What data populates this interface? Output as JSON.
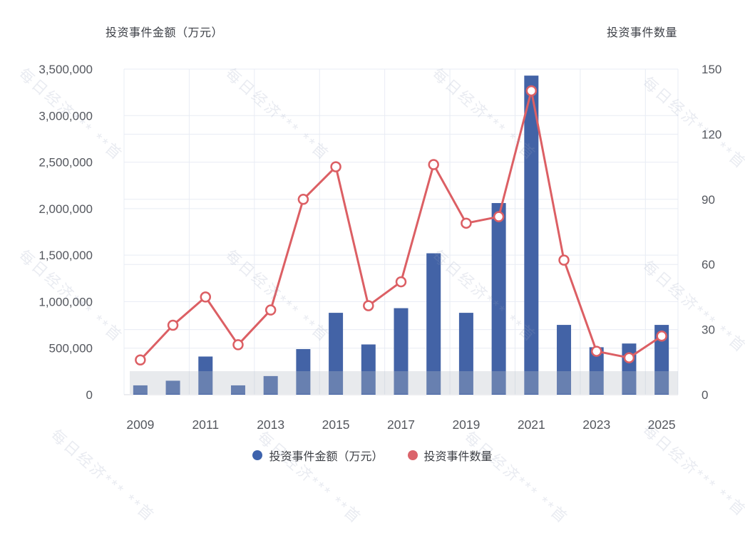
{
  "header": {
    "left_axis_title": "投资事件金额（万元）",
    "right_axis_title": "投资事件数量"
  },
  "legend": {
    "items": [
      {
        "label": "投资事件金额（万元）",
        "color": "#3E63AD"
      },
      {
        "label": "投资事件数量",
        "color": "#DB646B"
      }
    ]
  },
  "watermark": {
    "text": "每日经济*** **首"
  },
  "chart_data": {
    "type": "bar",
    "subtype": "dual-axis bar + line",
    "categories": [
      "2009",
      "2010",
      "2011",
      "2012",
      "2013",
      "2014",
      "2015",
      "2016",
      "2017",
      "2018",
      "2019",
      "2020",
      "2021",
      "2022",
      "2023",
      "2024",
      "2025"
    ],
    "series": [
      {
        "name": "投资事件金额（万元）",
        "type": "bar",
        "axis": "left",
        "color": "#4363A6",
        "values": [
          100000,
          150000,
          410000,
          100000,
          200000,
          490000,
          880000,
          540000,
          930000,
          1520000,
          880000,
          2060000,
          3430000,
          750000,
          510000,
          550000,
          750000
        ]
      },
      {
        "name": "投资事件数量",
        "type": "line",
        "axis": "right",
        "color": "#DC5F64",
        "marker": "circle-white-fill",
        "values": [
          16,
          32,
          45,
          23,
          39,
          90,
          105,
          41,
          52,
          106,
          79,
          82,
          140,
          62,
          20,
          17,
          27
        ]
      }
    ],
    "left_axis": {
      "title": "投资事件金额（万元）",
      "min": 0,
      "max": 3500000,
      "tick_step": 500000,
      "tick_labels": [
        "0",
        "500,000",
        "1,000,000",
        "1,500,000",
        "2,000,000",
        "2,500,000",
        "3,000,000",
        "3,500,000"
      ]
    },
    "right_axis": {
      "title": "投资事件数量",
      "min": 0,
      "max": 150,
      "tick_step": 30,
      "tick_labels": [
        "0",
        "30",
        "60",
        "90",
        "120",
        "150"
      ]
    },
    "x_tick_labels": [
      "2009",
      "2011",
      "2013",
      "2015",
      "2017",
      "2019",
      "2021",
      "2023",
      "2025"
    ],
    "grid": true,
    "legend_position": "bottom-center",
    "colors": {
      "grid_line": "#e8ecf4",
      "axis_line": "#d8dbe2",
      "tick_text": "#54575e",
      "watermark_band": "#b9bdc7"
    }
  }
}
